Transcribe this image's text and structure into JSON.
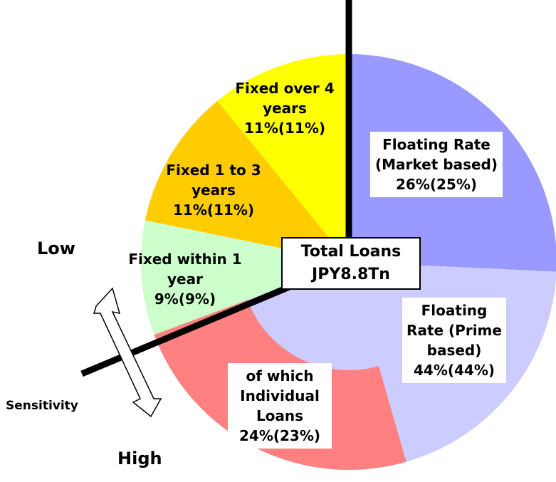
{
  "chart_data": {
    "type": "pie",
    "center_label": [
      "Total Loans",
      "JPY8.8Tn"
    ],
    "segments": [
      {
        "name": "Floating Rate (Market based)",
        "value": 26,
        "value_label": "26%(25%)",
        "color": "#9999ff"
      },
      {
        "name": "Floating Rate (Prime based)",
        "value": 44,
        "value_label": "44%(44%)",
        "color": "#ccccff",
        "of_which": {
          "name": "of which Individual Loans",
          "value": 24,
          "value_label": "24%(23%)",
          "color": "#ff8080"
        }
      },
      {
        "name": "Fixed within 1 year",
        "value": 9,
        "value_label": "9%(9%)",
        "color": "#ccffcc"
      },
      {
        "name": "Fixed 1 to 3 years",
        "value": 11,
        "value_label": "11%(11%)",
        "color": "#ffcc00"
      },
      {
        "name": "Fixed over 4 years",
        "value": 11,
        "value_label": "11%(11%)",
        "color": "#ffff00"
      }
    ],
    "sensitivity": {
      "title": "Sensitivity",
      "low": "Low",
      "high": "High"
    }
  }
}
